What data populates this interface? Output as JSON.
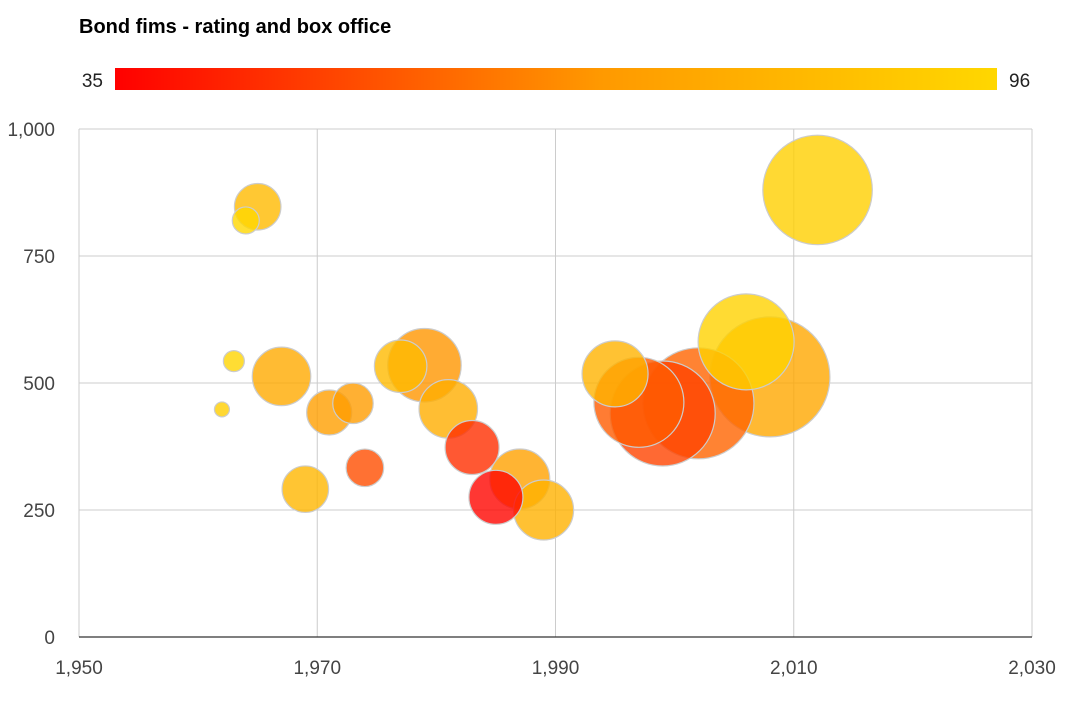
{
  "chart_data": {
    "type": "scatter",
    "title": "Bond fims - rating and box office",
    "xlabel": "",
    "ylabel": "",
    "xlim": [
      1950,
      2030
    ],
    "ylim": [
      0,
      1000
    ],
    "x_ticks": [
      1950,
      1970,
      1990,
      2010,
      2030
    ],
    "y_ticks": [
      0,
      250,
      500,
      750,
      1000
    ],
    "x_tick_labels": [
      "1,950",
      "1,970",
      "1,990",
      "2,010",
      "2,030"
    ],
    "y_tick_labels": [
      "0",
      "250",
      "500",
      "750",
      "1,000"
    ],
    "grid": true,
    "legend": {
      "type": "color-gradient",
      "position": "top",
      "min_label": "35",
      "max_label": "96",
      "min": 35,
      "max": 96,
      "colors": [
        "#ff0000",
        "#ff9900",
        "#ffd700"
      ]
    },
    "points": [
      {
        "x": 1962,
        "y": 448,
        "size": 1.0,
        "color_value": 92
      },
      {
        "x": 1963,
        "y": 543,
        "size": 1.4,
        "color_value": 95
      },
      {
        "x": 1964,
        "y": 820,
        "size": 1.8,
        "color_value": 96
      },
      {
        "x": 1965,
        "y": 847,
        "size": 3.1,
        "color_value": 83
      },
      {
        "x": 1967,
        "y": 513,
        "size": 3.9,
        "color_value": 76
      },
      {
        "x": 1969,
        "y": 291,
        "size": 3.1,
        "color_value": 82
      },
      {
        "x": 1971,
        "y": 442,
        "size": 3.0,
        "color_value": 71
      },
      {
        "x": 1973,
        "y": 460,
        "size": 2.7,
        "color_value": 70
      },
      {
        "x": 1974,
        "y": 333,
        "size": 2.5,
        "color_value": 52
      },
      {
        "x": 1977,
        "y": 533,
        "size": 3.5,
        "color_value": 83
      },
      {
        "x": 1979,
        "y": 535,
        "size": 4.9,
        "color_value": 68
      },
      {
        "x": 1981,
        "y": 449,
        "size": 3.9,
        "color_value": 78
      },
      {
        "x": 1983,
        "y": 373,
        "size": 3.6,
        "color_value": 45
      },
      {
        "x": 1985,
        "y": 275,
        "size": 3.6,
        "color_value": 36
      },
      {
        "x": 1987,
        "y": 311,
        "size": 4.0,
        "color_value": 72
      },
      {
        "x": 1989,
        "y": 250,
        "size": 4.0,
        "color_value": 79
      },
      {
        "x": 1995,
        "y": 518,
        "size": 4.4,
        "color_value": 80
      },
      {
        "x": 1997,
        "y": 462,
        "size": 6.0,
        "color_value": 55
      },
      {
        "x": 1999,
        "y": 440,
        "size": 7.0,
        "color_value": 50
      },
      {
        "x": 2002,
        "y": 460,
        "size": 7.4,
        "color_value": 57
      },
      {
        "x": 2008,
        "y": 512,
        "size": 8.0,
        "color_value": 75
      },
      {
        "x": 2006,
        "y": 581,
        "size": 6.4,
        "color_value": 94
      },
      {
        "x": 2012,
        "y": 880,
        "size": 7.3,
        "color_value": 93
      }
    ]
  }
}
